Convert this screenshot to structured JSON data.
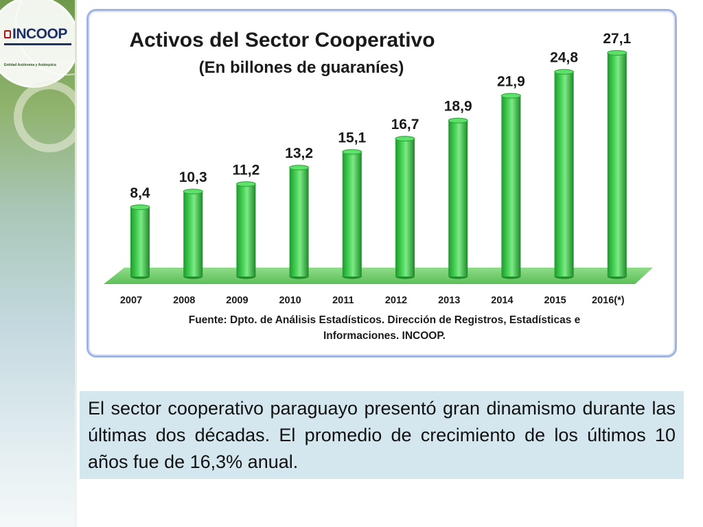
{
  "branding": {
    "logo_text": "INCOOP",
    "tagline": "Entidad Autónoma y Autárquica"
  },
  "chart_data": {
    "type": "bar",
    "title": "Activos del Sector Cooperativo",
    "subtitle": "(En billones de guaraníes)",
    "categories": [
      "2007",
      "2008",
      "2009",
      "2010",
      "2011",
      "2012",
      "2013",
      "2014",
      "2015",
      "2016(*)"
    ],
    "values": [
      8.4,
      10.3,
      11.2,
      13.2,
      15.1,
      16.7,
      18.9,
      21.9,
      24.8,
      27.1
    ],
    "value_labels": [
      "8,4",
      "10,3",
      "11,2",
      "13,2",
      "15,1",
      "16,7",
      "18,9",
      "21,9",
      "24,8",
      "27,1"
    ],
    "ylim": [
      0,
      27.1
    ],
    "grid": false,
    "legend": "none",
    "bar_color": "#3fca4f",
    "floor_color": "#7fd07a",
    "source_line1": "Fuente: Dpto. de Análisis Estadísticos. Dirección de Registros, Estadísticas e",
    "source_line2": "Informaciones. INCOOP."
  },
  "caption": {
    "text": "El  sector cooperativo paraguayo presentó gran dinamismo durante las últimas dos décadas. El promedio de crecimiento de los últimos 10 años fue de 16,3% anual."
  }
}
